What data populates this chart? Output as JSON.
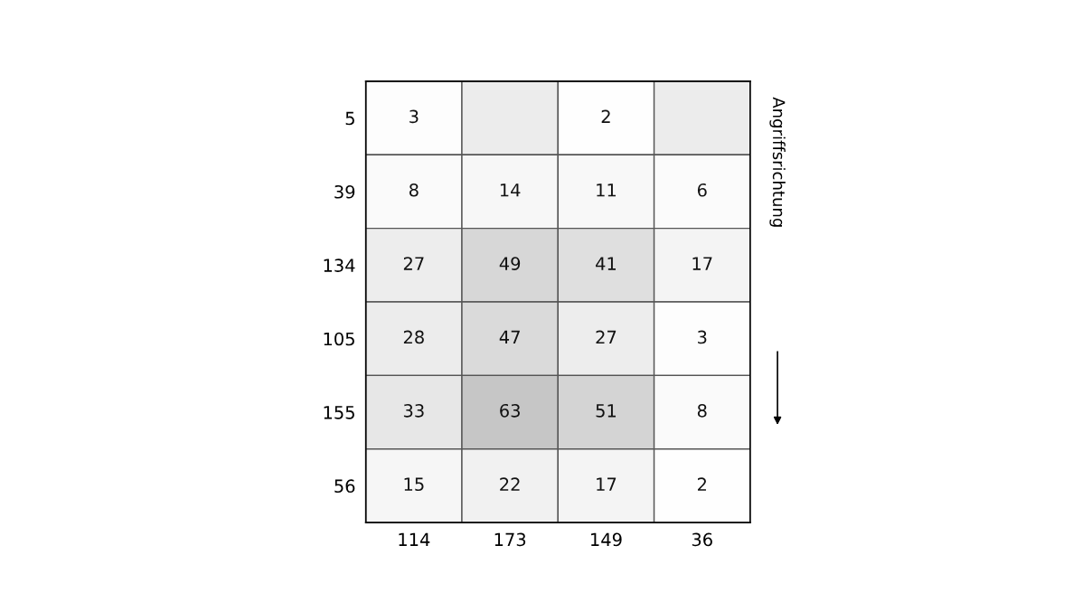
{
  "chart_data": {
    "type": "heatmap",
    "categories": [
      "114",
      "173",
      "149",
      "36"
    ],
    "y_categories": [
      "5",
      "39",
      "134",
      "105",
      "155",
      "56"
    ],
    "cells": [
      [
        3,
        null,
        2,
        null
      ],
      [
        8,
        14,
        11,
        6
      ],
      [
        27,
        49,
        41,
        17
      ],
      [
        28,
        47,
        27,
        3
      ],
      [
        33,
        63,
        51,
        8
      ],
      [
        15,
        22,
        17,
        2
      ]
    ],
    "data_labels": true,
    "annotations": [
      "Angriffsrichtung"
    ]
  }
}
